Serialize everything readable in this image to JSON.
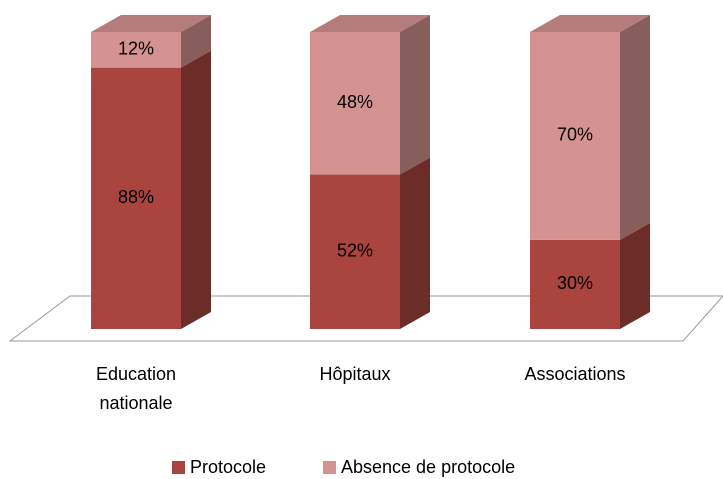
{
  "chart_data": {
    "type": "bar3d_stacked",
    "categories": [
      "Education nationale",
      "Hôpitaux",
      "Associations"
    ],
    "series": [
      {
        "name": "Protocole",
        "color": "#a9443f",
        "values": [
          88,
          52,
          30
        ],
        "value_labels": [
          "88%",
          "52%",
          "30%"
        ]
      },
      {
        "name": "Absence de protocole",
        "color": "#d49391",
        "values": [
          12,
          48,
          70
        ],
        "value_labels": [
          "12%",
          "48%",
          "70%"
        ]
      }
    ],
    "ylim": [
      0,
      100
    ],
    "legend": "bottom"
  }
}
